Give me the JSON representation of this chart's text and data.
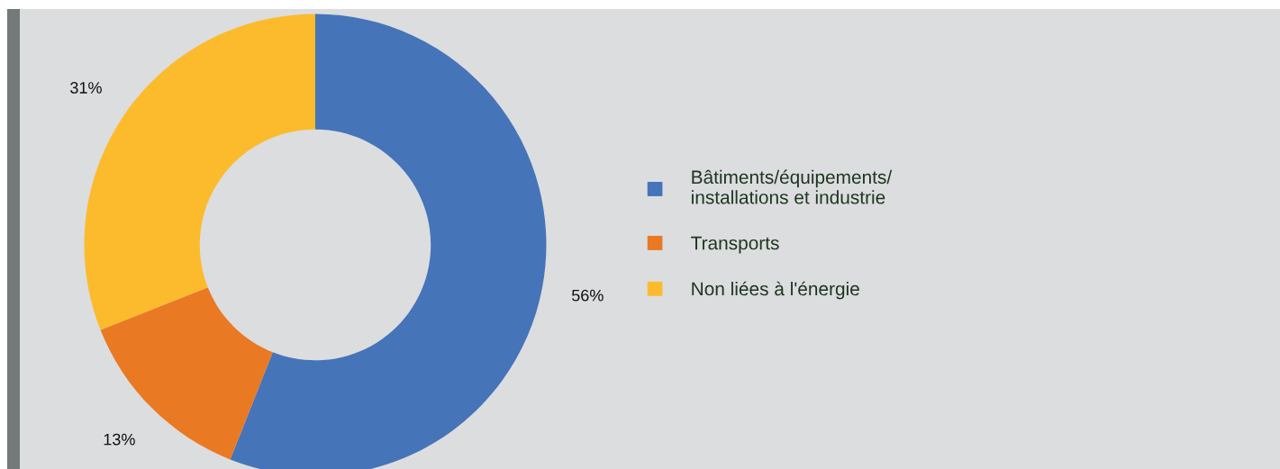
{
  "chart_data": {
    "type": "donut",
    "categories": [
      "Bâtiments/équipements/\ninstallations et industrie",
      "Transports",
      "Non liées à l'énergie"
    ],
    "values": [
      56,
      13,
      31
    ],
    "colors": [
      "#4674b8",
      "#ea7923",
      "#fcbb2c"
    ],
    "value_labels": [
      "56%",
      "13%",
      "31%"
    ],
    "legend": "right"
  }
}
